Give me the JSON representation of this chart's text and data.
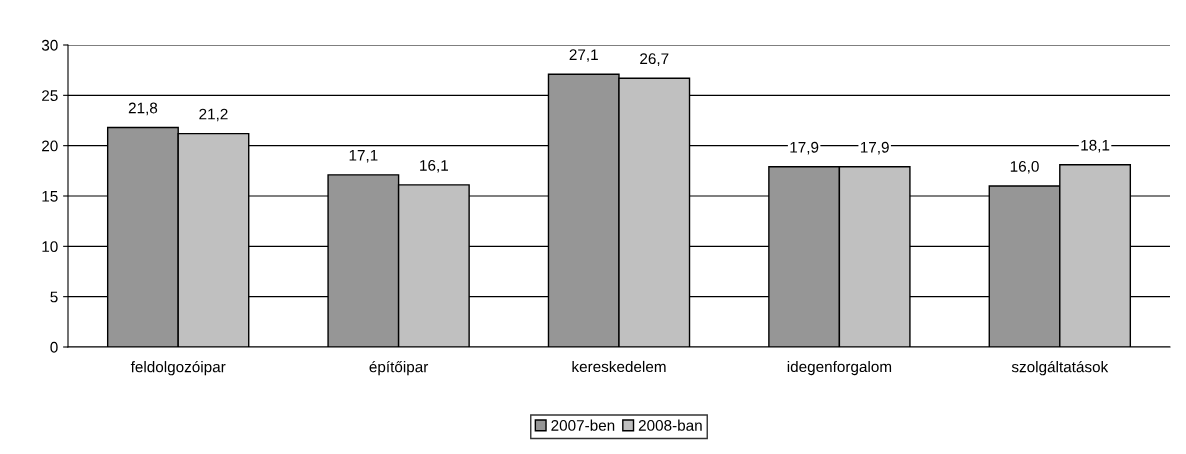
{
  "chart_data": {
    "type": "bar",
    "categories": [
      "feldolgozóipar",
      "építőipar",
      "kereskedelem",
      "idegenforgalom",
      "szolgáltatások"
    ],
    "series": [
      {
        "name": "2007-ben",
        "color": "#969696",
        "values": [
          21.8,
          17.1,
          27.1,
          17.9,
          16.0
        ],
        "value_labels": [
          "21,8",
          "17,1",
          "27,1",
          "17,9",
          "16,0"
        ]
      },
      {
        "name": "2008-ban",
        "color": "#c0c0c0",
        "values": [
          21.2,
          16.1,
          26.7,
          17.9,
          18.1
        ],
        "value_labels": [
          "21,2",
          "16,1",
          "26,7",
          "17,9",
          "18,1"
        ]
      }
    ],
    "ylim": [
      0,
      30
    ],
    "yticks": [
      0,
      5,
      10,
      15,
      20,
      25,
      30
    ],
    "grid": "y",
    "legend": "bottom"
  }
}
